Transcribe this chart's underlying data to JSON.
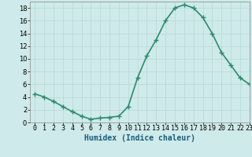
{
  "x": [
    0,
    1,
    2,
    3,
    4,
    5,
    6,
    7,
    8,
    9,
    10,
    11,
    12,
    13,
    14,
    15,
    16,
    17,
    18,
    19,
    20,
    21,
    22,
    23
  ],
  "y": [
    4.5,
    4.0,
    3.3,
    2.5,
    1.7,
    1.0,
    0.5,
    0.7,
    0.8,
    1.0,
    2.5,
    7.0,
    10.5,
    13.0,
    16.0,
    18.0,
    18.5,
    18.0,
    16.5,
    14.0,
    11.0,
    9.0,
    7.0,
    6.0
  ],
  "line_color": "#2e8b6e",
  "marker": "+",
  "marker_size": 4,
  "marker_linewidth": 1.0,
  "xlabel": "Humidex (Indice chaleur)",
  "xlim": [
    -0.5,
    23
  ],
  "ylim": [
    0,
    19
  ],
  "yticks": [
    0,
    2,
    4,
    6,
    8,
    10,
    12,
    14,
    16,
    18
  ],
  "xticks": [
    0,
    1,
    2,
    3,
    4,
    5,
    6,
    7,
    8,
    9,
    10,
    11,
    12,
    13,
    14,
    15,
    16,
    17,
    18,
    19,
    20,
    21,
    22,
    23
  ],
  "bg_color": "#ceeaea",
  "grid_color": "#b8d8d8",
  "line_width": 1.2,
  "xlabel_fontsize": 7,
  "tick_fontsize": 6
}
